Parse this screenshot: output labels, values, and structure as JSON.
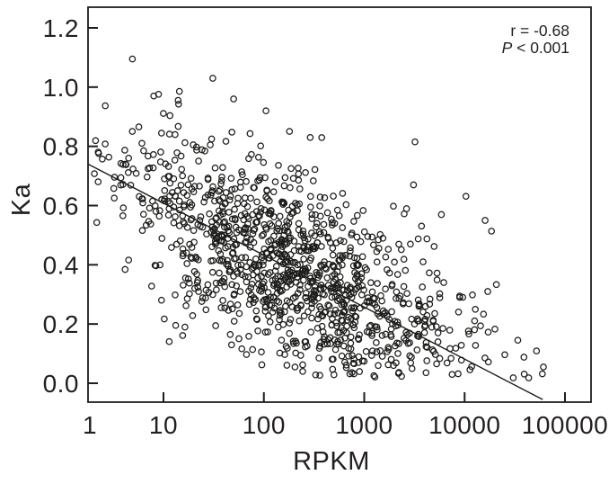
{
  "figure": {
    "y_axis_title": "Ka",
    "x_axis_title": "RPKM",
    "annotation": {
      "r_line": "r = -0.68",
      "p_symbol": "P",
      "p_rest": " < 0.001"
    }
  },
  "chart_data": {
    "type": "scatter",
    "title": "",
    "xlabel": "RPKM",
    "ylabel": "Ka",
    "x_scale": "log10",
    "grid": false,
    "legend": "none",
    "x_ticks": [
      1,
      10,
      100,
      1000,
      10000,
      100000
    ],
    "x_tick_labels": [
      "1",
      "10",
      "100",
      "1000",
      "10000",
      "100000"
    ],
    "y_ticks": [
      0.0,
      0.2,
      0.4,
      0.6,
      0.8,
      1.0,
      1.2
    ],
    "y_tick_labels": [
      "0.0",
      "0.2",
      "0.4",
      "0.6",
      "0.8",
      "1.0",
      "1.2"
    ],
    "xlim": [
      1.75,
      195000
    ],
    "ylim": [
      -0.06,
      1.27
    ],
    "correlation_r": -0.68,
    "p_value": "< 0.001",
    "regression": {
      "ka_at_rpkm_1": 0.781,
      "slope_ka_per_decade": -0.175
    },
    "trend_line_endpoints": [
      [
        1.75,
        0.74
      ],
      [
        60000,
        -0.055
      ]
    ],
    "n_points_estimated": 1150,
    "points_synthesized": true,
    "point_cloud": {
      "seed": 11,
      "n": 1150,
      "log10_rpkm_mean": 2.25,
      "log10_rpkm_sd": 0.85,
      "log10_rpkm_range": [
        0.3,
        4.78
      ],
      "ka_noise_sd": 0.16,
      "ka_range": [
        0.015,
        1.115
      ]
    },
    "outlier_points": [
      [
        4.9,
        1.095
      ],
      [
        31,
        1.03
      ],
      [
        8,
        0.97
      ],
      [
        14,
        0.955
      ],
      [
        50,
        0.96
      ],
      [
        105,
        0.92
      ],
      [
        290,
        0.83
      ],
      [
        3100,
        0.67
      ],
      [
        3200,
        0.815
      ],
      [
        6200,
        0.34
      ],
      [
        16000,
        0.55
      ],
      [
        17000,
        0.31
      ],
      [
        39000,
        0.088
      ],
      [
        52000,
        0.109
      ],
      [
        61000,
        0.055
      ]
    ]
  }
}
